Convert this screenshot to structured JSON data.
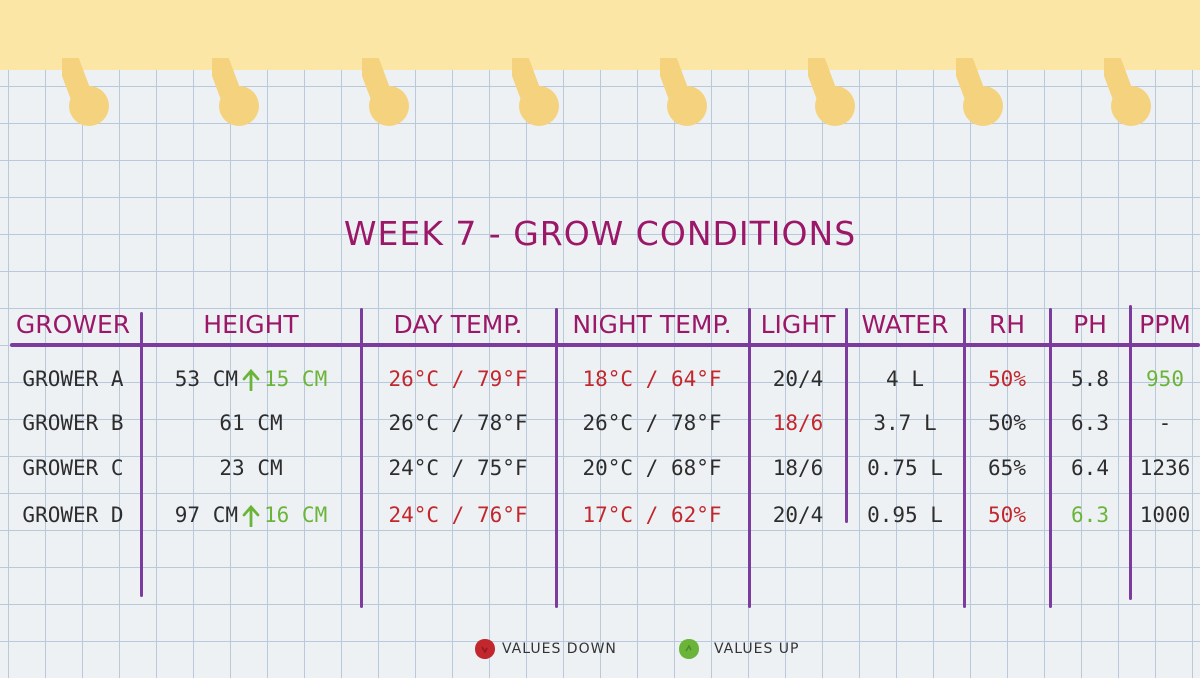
{
  "title": "WEEK 7 - GROW CONDITIONS",
  "colors": {
    "accent": "#9b1768",
    "rule": "#7b3c9e",
    "down": "#c1272d",
    "up": "#6bb43a",
    "band": "#fbe6a6"
  },
  "headers": {
    "grower": "GROWER",
    "height": "HEIGHT",
    "day_temp": "DAY TEMP.",
    "night_temp": "NIGHT TEMP.",
    "light": "LIGHT",
    "water": "WATER",
    "rh": "RH",
    "ph": "PH",
    "ppm": "PPM"
  },
  "rows": [
    {
      "grower": "GROWER A",
      "height": "53 CM",
      "height_change": "15 CM",
      "day_temp": "26°C / 79°F",
      "night_temp": "18°C / 64°F",
      "light": "20/4",
      "water": "4 L",
      "rh": "50%",
      "ph": "5.8",
      "ppm": "950"
    },
    {
      "grower": "GROWER B",
      "height": "61 CM",
      "height_change": "",
      "day_temp": "26°C / 78°F",
      "night_temp": "26°C / 78°F",
      "light": "18/6",
      "water": "3.7 L",
      "rh": "50%",
      "ph": "6.3",
      "ppm": "-"
    },
    {
      "grower": "GROWER C",
      "height": "23 CM",
      "height_change": "",
      "day_temp": "24°C / 75°F",
      "night_temp": "20°C / 68°F",
      "light": "18/6",
      "water": "0.75 L",
      "rh": "65%",
      "ph": "6.4",
      "ppm": "1236"
    },
    {
      "grower": "GROWER D",
      "height": "97 CM",
      "height_change": "16 CM",
      "day_temp": "24°C / 76°F",
      "night_temp": "17°C / 62°F",
      "light": "20/4",
      "water": "0.95 L",
      "rh": "50%",
      "ph": "6.3",
      "ppm": "1000"
    }
  ],
  "legend": {
    "down_label": "VALUES DOWN",
    "up_label": "VALUES UP"
  }
}
